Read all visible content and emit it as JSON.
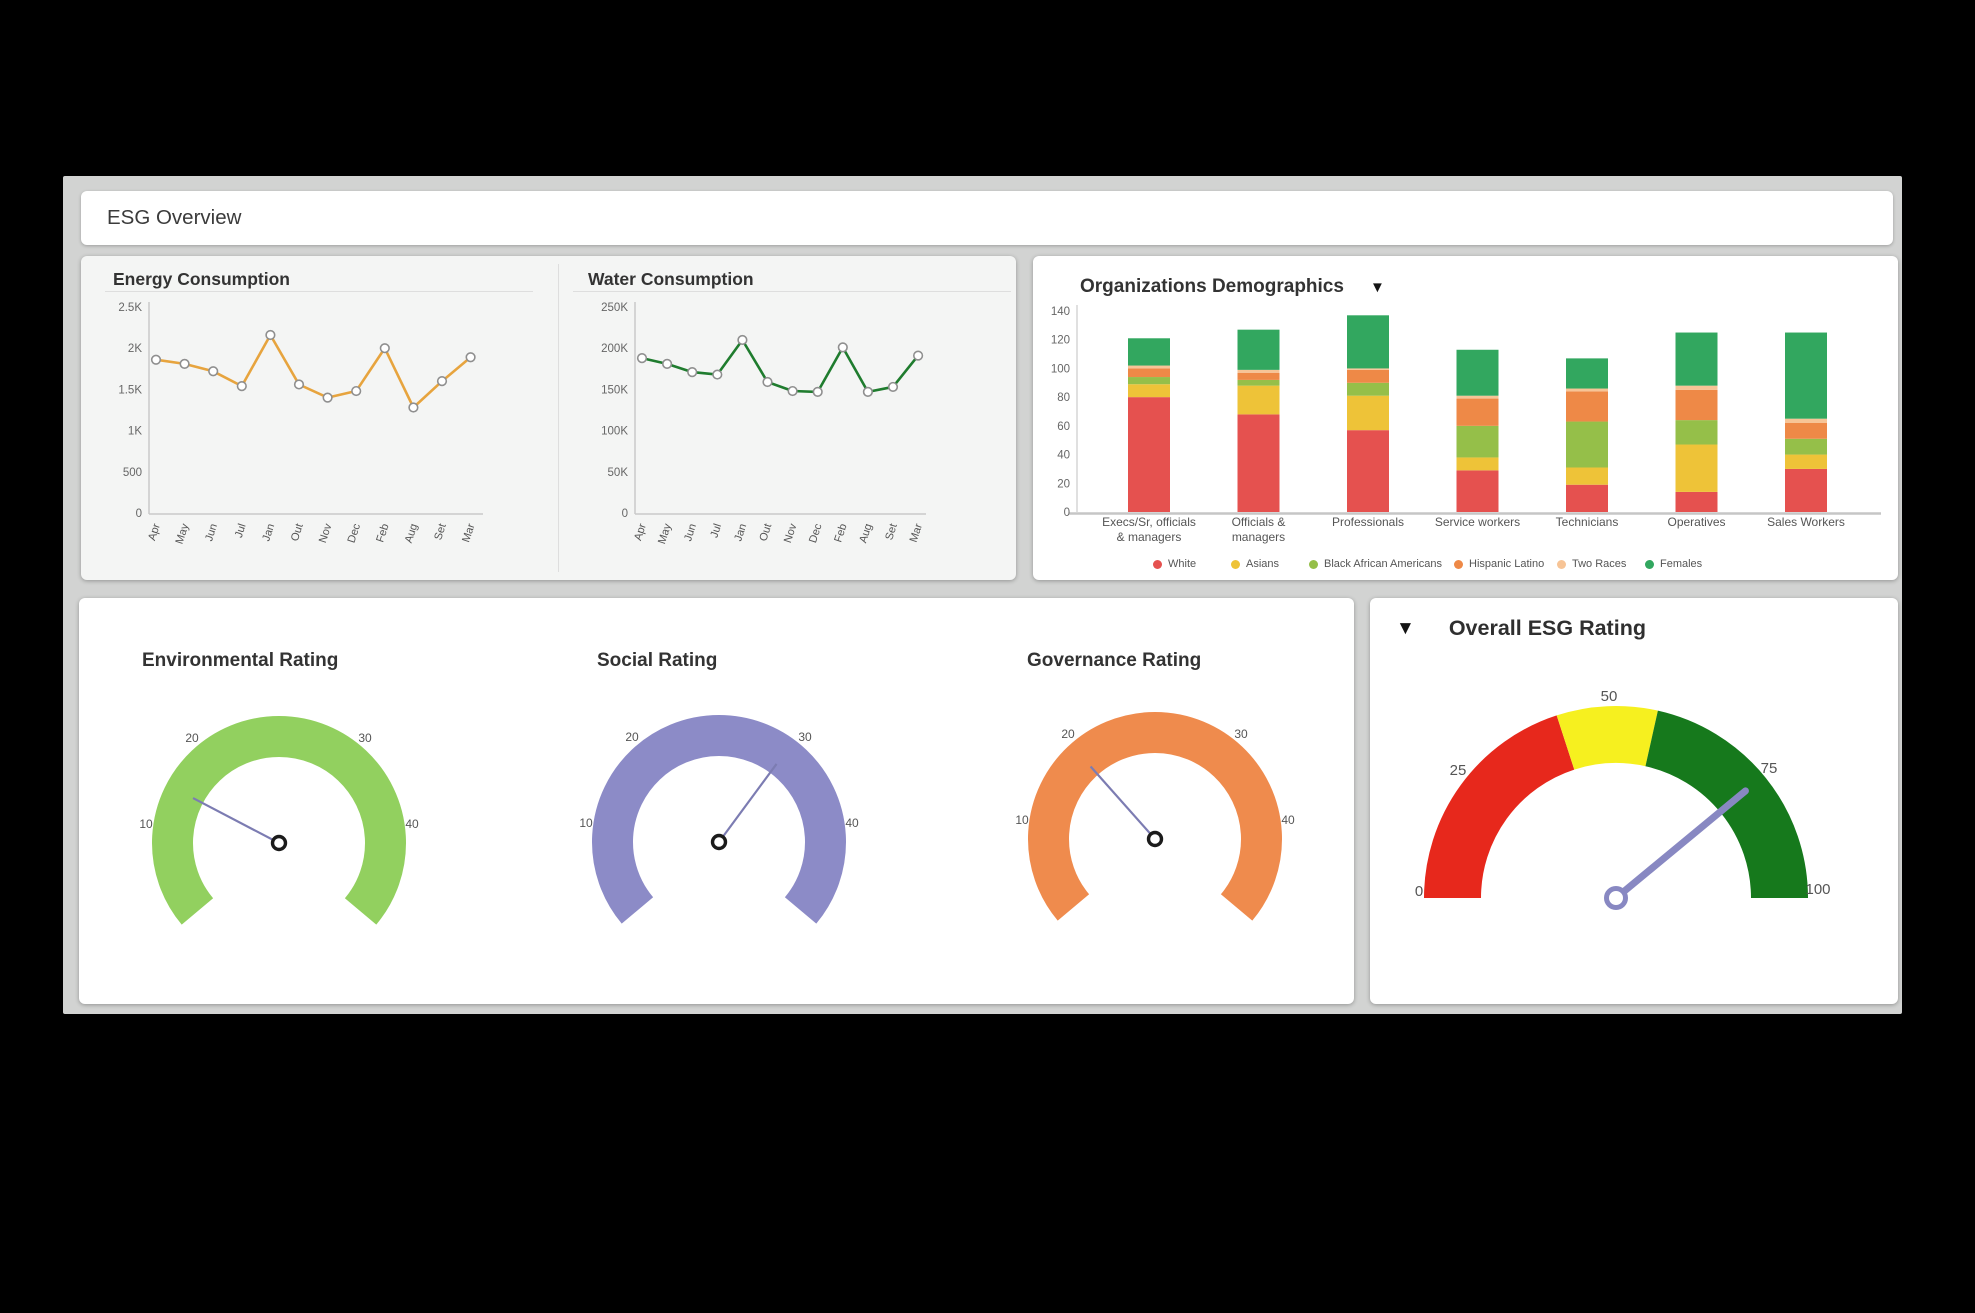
{
  "page": {
    "title": "ESG Overview"
  },
  "cards": {
    "consumption": {
      "energy_title": "Energy Consumption",
      "water_title": "Water Consumption"
    },
    "demographics": {
      "title": "Organizations Demographics",
      "dropdown_icon": "▼"
    },
    "ratings": {
      "environmental_title": "Environmental Rating",
      "social_title": "Social Rating",
      "governance_title": "Governance Rating"
    },
    "overall": {
      "title": "Overall ESG Rating",
      "dropdown_icon": "▼"
    }
  },
  "chart_data": [
    {
      "id": "energy",
      "type": "line",
      "title": "Energy Consumption",
      "x": [
        "Apr",
        "May",
        "Jun",
        "Jul",
        "Jan",
        "Out",
        "Nov",
        "Dec",
        "Feb",
        "Aug",
        "Set",
        "Mar"
      ],
      "values": [
        1860,
        1810,
        1720,
        1540,
        2160,
        1560,
        1400,
        1480,
        2000,
        1280,
        1600,
        1890
      ],
      "ylim": [
        0,
        2500
      ],
      "yticks": [
        "0",
        "500",
        "1K",
        "1.5K",
        "2K",
        "2.5K"
      ],
      "line_color": "#e7a43e",
      "grid": false,
      "marker": "circle"
    },
    {
      "id": "water",
      "type": "line",
      "title": "Water Consumption",
      "x": [
        "Apr",
        "May",
        "Jun",
        "Jul",
        "Jan",
        "Out",
        "Nov",
        "Dec",
        "Feb",
        "Aug",
        "Set",
        "Mar"
      ],
      "values": [
        188000,
        181000,
        171000,
        168000,
        210000,
        159000,
        148000,
        147000,
        201000,
        147000,
        153000,
        191000
      ],
      "ylim": [
        0,
        250000
      ],
      "yticks": [
        "0",
        "50K",
        "100K",
        "150K",
        "200K",
        "250K"
      ],
      "line_color": "#1f7c2e",
      "grid": false,
      "marker": "circle"
    },
    {
      "id": "demographics",
      "type": "bar",
      "stacked": true,
      "title": "Organizations Demographics",
      "categories": [
        {
          "label": "Execs/Sr, officials & managers",
          "lines": [
            "Execs/Sr, officials",
            "& managers"
          ]
        },
        {
          "label": "Officials & managers",
          "lines": [
            "Officials &",
            "managers"
          ]
        },
        {
          "label": "Professionals",
          "lines": [
            "Professionals"
          ]
        },
        {
          "label": "Service workers",
          "lines": [
            "Service workers"
          ]
        },
        {
          "label": "Technicians",
          "lines": [
            "Technicians"
          ]
        },
        {
          "label": "Operatives",
          "lines": [
            "Operatives"
          ]
        },
        {
          "label": "Sales Workers",
          "lines": [
            "Sales Workers"
          ]
        }
      ],
      "series": [
        {
          "name": "White",
          "color": "#e5514f",
          "values": [
            80,
            68,
            57,
            29,
            19,
            14,
            30
          ]
        },
        {
          "name": "Asians",
          "color": "#eec338",
          "values": [
            9,
            20,
            24,
            9,
            12,
            33,
            10
          ]
        },
        {
          "name": "Black African Americans",
          "color": "#95bf49",
          "values": [
            5,
            4,
            9,
            22,
            32,
            17,
            11
          ]
        },
        {
          "name": "Hispanic Latino",
          "color": "#ee8947",
          "values": [
            6,
            5,
            9,
            19,
            21,
            21,
            11
          ]
        },
        {
          "name": "Two Races",
          "color": "#f7c496",
          "values": [
            2,
            2,
            1,
            2,
            2,
            3,
            3
          ]
        },
        {
          "name": "Females",
          "color": "#32a75f",
          "values": [
            19,
            28,
            37,
            32,
            21,
            37,
            60
          ]
        }
      ],
      "ylim": [
        0,
        140
      ],
      "yticks": [
        0,
        20,
        40,
        60,
        80,
        100,
        120,
        140
      ],
      "legend_position": "bottom"
    },
    {
      "id": "environmental",
      "type": "gauge",
      "title": "Environmental Rating",
      "min": 0,
      "max": 50,
      "value": 13,
      "ticks": [
        10,
        20,
        30,
        40
      ],
      "arc_color": "#92d05f",
      "needle_color": "#7c7cb2"
    },
    {
      "id": "social",
      "type": "gauge",
      "title": "Social Rating",
      "min": 0,
      "max": 50,
      "value": 32,
      "ticks": [
        10,
        20,
        30,
        40
      ],
      "arc_color": "#8c8bc7",
      "needle_color": "#7c7cb2"
    },
    {
      "id": "governance",
      "type": "gauge",
      "title": "Governance Rating",
      "min": 0,
      "max": 50,
      "value": 17,
      "ticks": [
        10,
        20,
        30,
        40
      ],
      "arc_color": "#ef8b4d",
      "needle_color": "#7c7cb2"
    },
    {
      "id": "overall",
      "type": "gauge",
      "title": "Overall ESG Rating",
      "min": 0,
      "max": 100,
      "value": 78,
      "ticks": [
        0,
        25,
        50,
        75,
        100
      ],
      "segments": [
        {
          "from": 0,
          "to": 40,
          "color": "#e7281c"
        },
        {
          "from": 40,
          "to": 57,
          "color": "#f6f01f"
        },
        {
          "from": 57,
          "to": 100,
          "color": "#16791c"
        }
      ],
      "needle_color": "#8888c2"
    }
  ]
}
